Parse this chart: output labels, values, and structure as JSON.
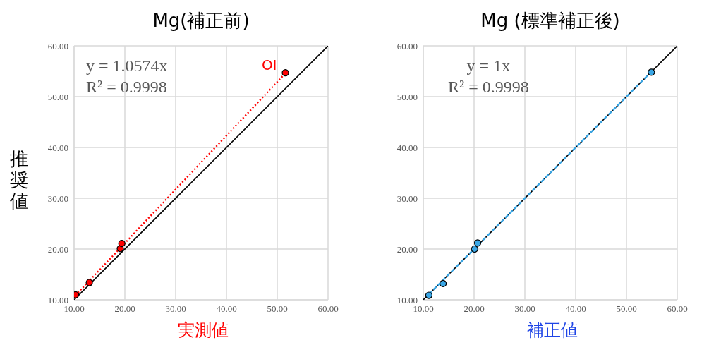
{
  "chart_data": [
    {
      "type": "scatter",
      "title": "Mg(補正前)",
      "xlabel": "実測値",
      "ylabel": "推奨値",
      "xlim": [
        10,
        60
      ],
      "ylim": [
        10,
        60
      ],
      "xticks": [
        {
          "value": 10,
          "label": "10.00"
        },
        {
          "value": 20,
          "label": "20.00"
        },
        {
          "value": 30,
          "label": "30.00"
        },
        {
          "value": 40,
          "label": "40.00"
        },
        {
          "value": 50,
          "label": "50.00"
        },
        {
          "value": 60,
          "label": "60.00"
        }
      ],
      "yticks": [
        {
          "value": 10,
          "label": "10.00"
        },
        {
          "value": 20,
          "label": "20.00"
        },
        {
          "value": 30,
          "label": "30.00"
        },
        {
          "value": 40,
          "label": "40.00"
        },
        {
          "value": 50,
          "label": "50.00"
        },
        {
          "value": 60,
          "label": "60.00"
        }
      ],
      "grid": true,
      "annotations": [
        "y = 1.0574x",
        "R² = 0.9998",
        {
          "text": "OI",
          "x": 51.6,
          "y": 54.7
        }
      ],
      "series": [
        {
          "type": "line",
          "color": "#000000",
          "line_style": "solid",
          "marker": "none",
          "x": [
            10,
            60
          ],
          "values": [
            10,
            60
          ]
        },
        {
          "type": "line",
          "color": "#ff0000",
          "line_style": "dotted",
          "marker": "none",
          "x": [
            10.3,
            51.6
          ],
          "values": [
            10.9,
            54.6
          ]
        },
        {
          "color": "#ff0000",
          "marker": "circle",
          "x": [
            10.3,
            13.0,
            19.1,
            19.4,
            51.6
          ],
          "values": [
            11.0,
            13.4,
            20.1,
            21.1,
            54.7
          ]
        }
      ]
    },
    {
      "type": "scatter",
      "title": "Mg (標準補正後)",
      "xlabel": "補正値",
      "xlim": [
        10,
        60
      ],
      "ylim": [
        10,
        60
      ],
      "xticks": [
        {
          "value": 10,
          "label": "10.00"
        },
        {
          "value": 20,
          "label": "20.00"
        },
        {
          "value": 30,
          "label": "30.00"
        },
        {
          "value": 40,
          "label": "40.00"
        },
        {
          "value": 50,
          "label": "50.00"
        },
        {
          "value": 60,
          "label": "60.00"
        }
      ],
      "yticks": [
        {
          "value": 10,
          "label": "10.00"
        },
        {
          "value": 20,
          "label": "20.00"
        },
        {
          "value": 30,
          "label": "30.00"
        },
        {
          "value": 40,
          "label": "40.00"
        },
        {
          "value": 50,
          "label": "50.00"
        },
        {
          "value": 60,
          "label": "60.00"
        }
      ],
      "grid": true,
      "annotations": [
        "y = 1x",
        "R² = 0.9998"
      ],
      "series": [
        {
          "type": "line",
          "color": "#000000",
          "line_style": "solid",
          "marker": "none",
          "x": [
            10,
            60
          ],
          "values": [
            10,
            60
          ]
        },
        {
          "type": "line",
          "color": "#3aa7e6",
          "line_style": "dashed",
          "marker": "none",
          "x": [
            11.1,
            54.9
          ],
          "values": [
            11.1,
            54.9
          ]
        },
        {
          "color": "#3aa7e6",
          "marker": "circle",
          "x": [
            11.1,
            13.9,
            20.1,
            20.7,
            54.9
          ],
          "values": [
            10.9,
            13.2,
            20.0,
            21.2,
            54.8
          ]
        }
      ]
    }
  ]
}
